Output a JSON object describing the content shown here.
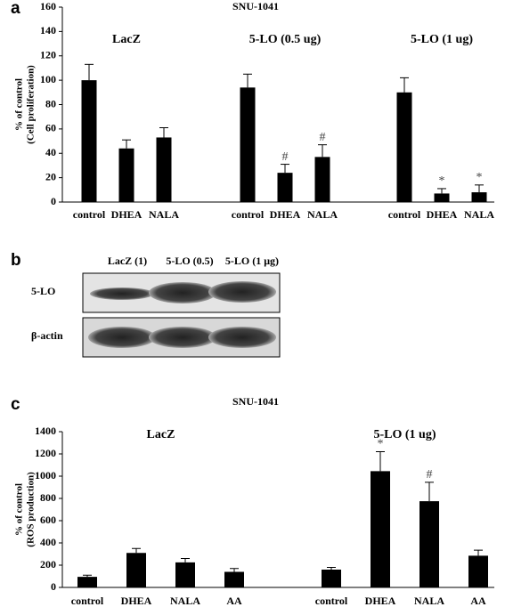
{
  "chart_data": [
    {
      "type": "bar",
      "panel": "a",
      "title": "SNU-1041",
      "ylabel": [
        "% of control",
        "(Cell proliferation)"
      ],
      "ylim": [
        0,
        160
      ],
      "yticks": [
        0,
        20,
        40,
        60,
        80,
        100,
        120,
        140,
        160
      ],
      "color": "#000000",
      "groups": [
        {
          "name": "LacZ",
          "categories": [
            "control",
            "DHEA",
            "NALA"
          ],
          "values": [
            100,
            44,
            53
          ],
          "errors": [
            13,
            7,
            8
          ],
          "markers": [
            null,
            null,
            null
          ]
        },
        {
          "name": "5-LO (0.5 ug)",
          "categories": [
            "control",
            "DHEA",
            "NALA"
          ],
          "values": [
            94,
            24,
            37
          ],
          "errors": [
            11,
            7,
            10
          ],
          "markers": [
            null,
            "#",
            "#"
          ]
        },
        {
          "name": "5-LO (1 ug)",
          "categories": [
            "control",
            "DHEA",
            "NALA"
          ],
          "values": [
            90,
            7,
            8
          ],
          "errors": [
            12,
            4,
            6
          ],
          "markers": [
            null,
            "*",
            "*"
          ]
        }
      ]
    },
    {
      "type": "bar",
      "panel": "c",
      "title": "SNU-1041",
      "ylabel": [
        "% of control",
        "(ROS production)"
      ],
      "ylim": [
        0,
        1400
      ],
      "yticks": [
        0,
        200,
        400,
        600,
        800,
        1000,
        1200,
        1400
      ],
      "color": "#000000",
      "groups": [
        {
          "name": "LacZ",
          "categories": [
            "control",
            "DHEA",
            "NALA",
            "AA"
          ],
          "values": [
            95,
            310,
            225,
            140
          ],
          "errors": [
            15,
            40,
            35,
            30
          ],
          "markers": [
            null,
            null,
            null,
            null
          ]
        },
        {
          "name": "5-LO (1 ug)",
          "categories": [
            "control",
            "DHEA",
            "NALA",
            "AA"
          ],
          "values": [
            160,
            1045,
            775,
            285
          ],
          "errors": [
            20,
            175,
            170,
            50
          ],
          "markers": [
            null,
            "*",
            "#",
            null
          ]
        }
      ]
    }
  ],
  "blot": {
    "panel": "b",
    "lanes": [
      "LacZ (1)",
      "5-LO (0.5)",
      "5-LO (1 μg)"
    ],
    "rows": [
      "5-LO",
      "β-actin"
    ]
  }
}
